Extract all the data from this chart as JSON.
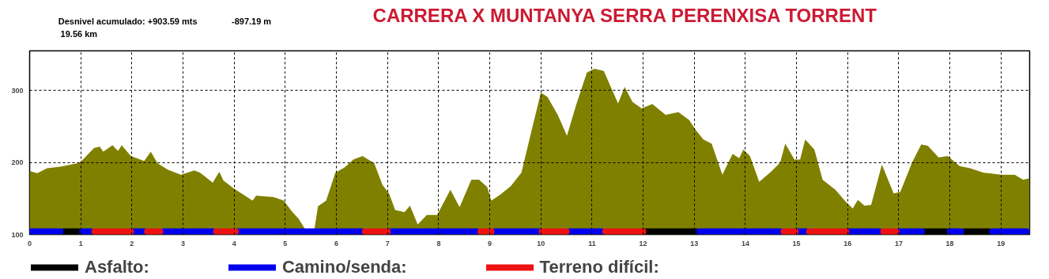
{
  "chart_data": {
    "type": "area",
    "title": "CARRERA X MUNTANYA SERRA PERENXISA  TORRENT",
    "annotations": [
      "Desnivel acumulado: +903.59 mts",
      "-897.19 m",
      "19.56 km"
    ],
    "xlim": [
      0,
      19.56
    ],
    "ylim": [
      100,
      355
    ],
    "xticks": [
      0,
      1,
      2,
      3,
      4,
      5,
      6,
      7,
      8,
      9,
      10,
      11,
      12,
      13,
      14,
      15,
      16,
      17,
      18,
      19
    ],
    "yticks": [
      100,
      200,
      300
    ],
    "grid": true,
    "legend": "bottom",
    "series": [
      {
        "color": "#808000",
        "x": [
          0,
          0.15,
          0.34,
          0.6,
          0.95,
          1.0,
          1.26,
          1.37,
          1.44,
          1.62,
          1.73,
          1.8,
          1.98,
          2.24,
          2.37,
          2.5,
          2.7,
          2.96,
          3.22,
          3.33,
          3.58,
          3.71,
          3.79,
          3.99,
          4.36,
          4.43,
          4.77,
          4.97,
          5.13,
          5.26,
          5.39,
          5.57,
          5.64,
          5.8,
          5.98,
          6.16,
          6.33,
          6.51,
          6.74,
          6.9,
          7.03,
          7.15,
          7.33,
          7.44,
          7.59,
          7.77,
          7.97,
          8.23,
          8.41,
          8.64,
          8.79,
          8.95,
          9.03,
          9.2,
          9.41,
          9.62,
          9.82,
          10.0,
          10.13,
          10.33,
          10.51,
          10.69,
          10.9,
          11.05,
          11.23,
          11.51,
          11.64,
          11.79,
          11.97,
          12.18,
          12.44,
          12.69,
          12.9,
          13.03,
          13.18,
          13.34,
          13.55,
          13.75,
          13.88,
          13.96,
          14.09,
          14.27,
          14.5,
          14.68,
          14.78,
          14.96,
          15.07,
          15.17,
          15.35,
          15.51,
          15.76,
          15.97,
          16.1,
          16.2,
          16.33,
          16.46,
          16.67,
          16.9,
          17.03,
          17.26,
          17.44,
          17.57,
          17.78,
          17.96,
          18.19,
          18.4,
          18.65,
          19.02,
          19.27,
          19.43,
          19.56
        ],
        "values": [
          188,
          185,
          192,
          194,
          199,
          201,
          220,
          222,
          215,
          224,
          216,
          224,
          209,
          202,
          215,
          199,
          190,
          183,
          189,
          186,
          172,
          187,
          175,
          164,
          147,
          154,
          152,
          147,
          132,
          122,
          107,
          107,
          139,
          147,
          186,
          193,
          204,
          209,
          199,
          169,
          157,
          134,
          131,
          140,
          114,
          127,
          127,
          162,
          138,
          176,
          176,
          166,
          147,
          155,
          167,
          186,
          245,
          297,
          291,
          266,
          237,
          280,
          325,
          330,
          327,
          282,
          305,
          284,
          275,
          281,
          266,
          270,
          259,
          245,
          232,
          226,
          183,
          212,
          206,
          218,
          209,
          173,
          187,
          200,
          226,
          204,
          204,
          232,
          218,
          176,
          162,
          145,
          136,
          148,
          140,
          141,
          197,
          157,
          159,
          200,
          225,
          223,
          207,
          209,
          195,
          192,
          186,
          183,
          183,
          176,
          178
        ]
      },
      {
        "type": "line",
        "name": "Asfalto:",
        "color": "#000000",
        "x": [
          0.65,
          0.97
        ],
        "values": [
          104,
          104
        ]
      },
      {
        "type": "line",
        "color": "#000000",
        "x": [
          12.0,
          13.05
        ],
        "values": [
          104,
          104
        ]
      },
      {
        "type": "line",
        "color": "#000000",
        "x": [
          17.48,
          17.95
        ],
        "values": [
          104,
          104
        ]
      },
      {
        "type": "line",
        "color": "#000000",
        "x": [
          18.28,
          18.78
        ],
        "values": [
          104,
          104
        ]
      },
      {
        "type": "line",
        "name": "Camino/senda:",
        "color": "#0000ee",
        "x": [
          0,
          0.6
        ],
        "values": [
          104,
          104
        ]
      },
      {
        "type": "line",
        "color": "#0000ee",
        "x": [
          1.03,
          1.2
        ],
        "values": [
          104,
          104
        ]
      },
      {
        "type": "line",
        "color": "#0000ee",
        "x": [
          2.0,
          2.25
        ],
        "values": [
          104,
          104
        ]
      },
      {
        "type": "line",
        "color": "#0000ee",
        "x": [
          2.62,
          3.6
        ],
        "values": [
          104,
          104
        ]
      },
      {
        "type": "line",
        "color": "#0000ee",
        "x": [
          4.06,
          6.5
        ],
        "values": [
          104,
          104
        ]
      },
      {
        "type": "line",
        "color": "#0000ee",
        "x": [
          7.02,
          8.75
        ],
        "values": [
          104,
          104
        ]
      },
      {
        "type": "line",
        "color": "#0000ee",
        "x": [
          9.1,
          10.0
        ],
        "values": [
          104,
          104
        ]
      },
      {
        "type": "line",
        "color": "#0000ee",
        "x": [
          10.56,
          11.2
        ],
        "values": [
          104,
          104
        ]
      },
      {
        "type": "line",
        "color": "#0000ee",
        "x": [
          13.1,
          14.7
        ],
        "values": [
          104,
          104
        ]
      },
      {
        "type": "line",
        "color": "#0000ee",
        "x": [
          15.0,
          15.2
        ],
        "values": [
          104,
          104
        ]
      },
      {
        "type": "line",
        "color": "#0000ee",
        "x": [
          16.02,
          16.62
        ],
        "values": [
          104,
          104
        ]
      },
      {
        "type": "line",
        "color": "#0000ee",
        "x": [
          17.0,
          17.45
        ],
        "values": [
          104,
          104
        ]
      },
      {
        "type": "line",
        "color": "#0000ee",
        "x": [
          18.0,
          18.22
        ],
        "values": [
          104,
          104
        ]
      },
      {
        "type": "line",
        "color": "#0000ee",
        "x": [
          18.83,
          19.5
        ],
        "values": [
          104,
          104
        ]
      },
      {
        "type": "line",
        "name": "Terreno difícil:",
        "color": "#ee1111",
        "x": [
          1.27,
          1.98
        ],
        "values": [
          104,
          104
        ]
      },
      {
        "type": "line",
        "color": "#ee1111",
        "x": [
          2.3,
          2.55
        ],
        "values": [
          104,
          104
        ]
      },
      {
        "type": "line",
        "color": "#ee1111",
        "x": [
          3.65,
          4.03
        ],
        "values": [
          104,
          104
        ]
      },
      {
        "type": "line",
        "color": "#ee1111",
        "x": [
          6.56,
          7.0
        ],
        "values": [
          104,
          104
        ]
      },
      {
        "type": "line",
        "color": "#ee1111",
        "x": [
          8.82,
          9.03
        ],
        "values": [
          104,
          104
        ]
      },
      {
        "type": "line",
        "color": "#ee1111",
        "x": [
          10.02,
          10.5
        ],
        "values": [
          104,
          104
        ]
      },
      {
        "type": "line",
        "color": "#ee1111",
        "x": [
          11.26,
          12.0
        ],
        "values": [
          104,
          104
        ]
      },
      {
        "type": "line",
        "color": "#ee1111",
        "x": [
          14.75,
          14.98
        ],
        "values": [
          104,
          104
        ]
      },
      {
        "type": "line",
        "color": "#ee1111",
        "x": [
          15.25,
          15.97
        ],
        "values": [
          104,
          104
        ]
      },
      {
        "type": "line",
        "color": "#ee1111",
        "x": [
          16.7,
          16.95
        ],
        "values": [
          104,
          104
        ]
      }
    ]
  }
}
